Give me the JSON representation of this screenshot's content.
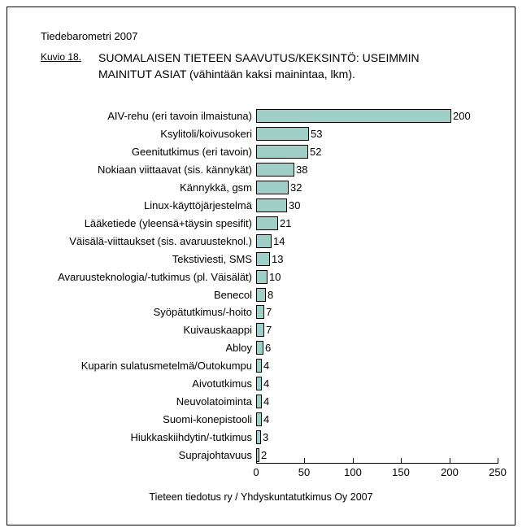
{
  "page": {
    "background_color": "#ffffff",
    "frame_border_color": "#000000"
  },
  "header": {
    "report_title": "Tiedebarometri 2007",
    "figure_label": "Kuvio 18.",
    "title_line1": "SUOMALAISEN TIETEEN SAAVUTUS/KEKSINTÖ: USEIMMIN",
    "title_line2": "MAINITUT ASIAT (vähintään kaksi mainintaa, lkm)."
  },
  "chart_data": {
    "type": "bar",
    "orientation": "horizontal",
    "title": "SUOMALAISEN TIETEEN SAAVUTUS/KEKSINTÖ: USEIMMIN MAINITUT ASIAT (vähintään kaksi mainintaa, lkm).",
    "categories": [
      "AIV-rehu (eri tavoin ilmaistuna)",
      "Ksylitoli/koivusokeri",
      "Geenitutkimus (eri tavoin)",
      "Nokiaan viittaavat (sis. kännykät)",
      "Kännykkä, gsm",
      "Linux-käyttöjärjestelmä",
      "Lääketiede (yleensä+täysin spesifit)",
      "Väisälä-viittaukset (sis. avaruusteknol.)",
      "Tekstiviesti, SMS",
      "Avaruusteknologia/-tutkimus (pl. Väisälät)",
      "Benecol",
      "Syöpätutkimus/-hoito",
      "Kuivauskaappi",
      "Abloy",
      "Kuparin sulatusmetelmä/Outokumpu",
      "Aivotutkimus",
      "Neuvolatoiminta",
      "Suomi-konepistooli",
      "Hiukkaskiihdytin/-tutkimus",
      "Suprajohtavuus"
    ],
    "values": [
      200,
      53,
      52,
      38,
      32,
      30,
      21,
      14,
      13,
      10,
      8,
      7,
      7,
      6,
      4,
      4,
      4,
      4,
      3,
      2
    ],
    "value_labels_shown": true,
    "xlabel": "",
    "ylabel": "",
    "xlim": [
      0,
      250
    ],
    "x_ticks": [
      0,
      50,
      100,
      150,
      200,
      250
    ],
    "grid": false,
    "legend": null,
    "bar_color": "#9fcfc6",
    "bar_border_color": "#000000"
  },
  "footer": {
    "source": "Tieteen tiedotus ry / Yhdyskuntatutkimus Oy 2007"
  }
}
